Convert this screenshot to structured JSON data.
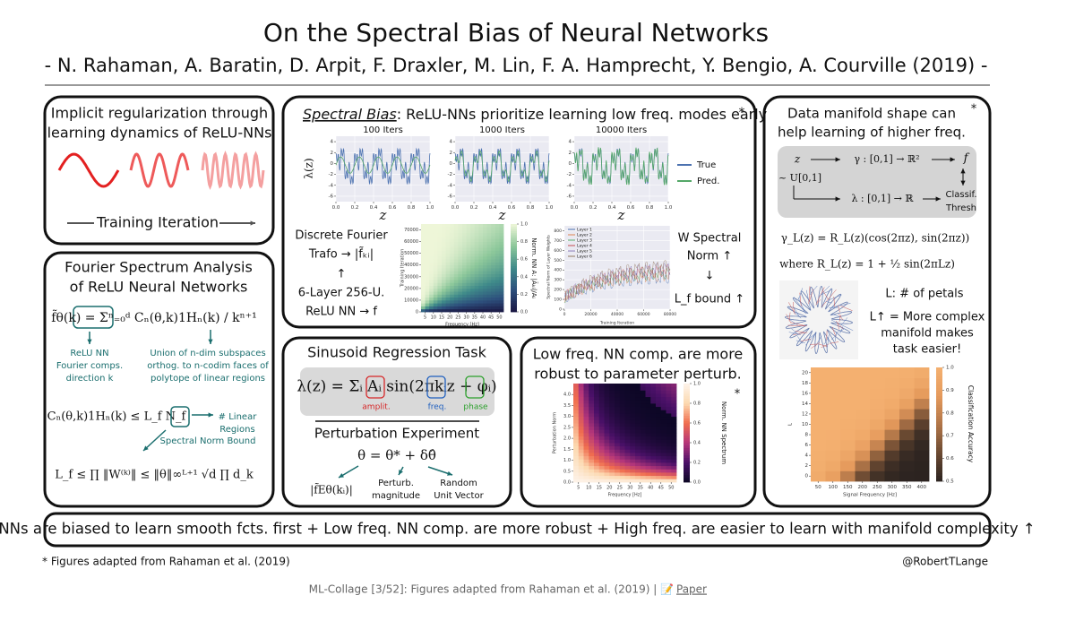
{
  "header": {
    "title": "On the Spectral Bias of Neural Networks",
    "authors": "- N. Rahaman, A. Baratin, D. Arpit, F. Draxler, M. Lin, F. A. Hamprecht, Y. Bengio, A. Courville (2019) -"
  },
  "panel_implicit": {
    "title": [
      "Implicit regularization through",
      "learning dynamics of ReLU-NNs"
    ],
    "axis_label": "Training Iteration"
  },
  "panel_fourier": {
    "title": [
      "Fourier Spectrum Analysis",
      "of ReLU Neural Networks"
    ],
    "formula_spectrum": "f̃θ(k) = Σⁿ₌₀ᵈ Cₙ(θ,k)1Hₙ(k) / kⁿ⁺¹",
    "note_left": [
      "ReLU NN",
      "Fourier comps.",
      "direction k"
    ],
    "note_right": [
      "Union of n-dim subspaces",
      "orthog. to n-codim faces of",
      "polytope of linear regions"
    ],
    "formula_bound": "Cₙ(θ,k)1Hₙ(k) ≤ L_f N_f",
    "note_regions": [
      "# Linear",
      "Regions"
    ],
    "note_norm": "Spectral Norm Bound",
    "formula_lipschitz": "L_f ≤ ∏ ‖W⁽ᵏ⁾‖ ≤ ‖θ‖∞ᴸ⁺¹ √d ∏ d_k"
  },
  "panel_spectral": {
    "title_emph": "Spectral Bias",
    "title_rest": ": ReLU-NNs prioritize learning low freq. modes early",
    "star": "*",
    "fits": {
      "titles": [
        "100 Iters",
        "1000 Iters",
        "10000 Iters"
      ],
      "ylabel": "λ(z)",
      "xlabel": "z",
      "xlim": [
        0,
        1
      ],
      "ylim": [
        -7,
        5
      ],
      "xticks": [
        {
          "value": 0,
          "label": "0.0"
        },
        {
          "value": 0.2,
          "label": "0.2"
        },
        {
          "value": 0.4,
          "label": "0.4"
        },
        {
          "value": 0.6,
          "label": "0.6"
        },
        {
          "value": 0.8,
          "label": "0.8"
        },
        {
          "value": 1,
          "label": "1.0"
        }
      ],
      "yticks": [
        4,
        2,
        0,
        -2,
        -4,
        -6
      ],
      "series": [
        {
          "name": "True",
          "color": "#4c72b0"
        },
        {
          "name": "Pred.",
          "color": "#55a868"
        }
      ]
    },
    "left_text": [
      "Discrete Fourier",
      "Trafo → |f̃ₖᵢ|",
      "↑",
      "6-Layer 256-U.",
      "ReLU NN → f"
    ],
    "heatmap": {
      "xlabel": "Frequency [Hz]",
      "ylabel": "Training Iteration",
      "xlim": [
        2.5,
        52.5
      ],
      "ylim": [
        0,
        75000
      ],
      "xticks": [
        5,
        10,
        15,
        20,
        25,
        30,
        35,
        40,
        45,
        50
      ],
      "yticks": [
        0,
        10000,
        20000,
        30000,
        40000,
        50000,
        60000,
        70000
      ],
      "cbar_lim": [
        0,
        1
      ],
      "cbar_ticks": [
        {
          "value": 0,
          "label": "0.0"
        },
        {
          "value": 0.2,
          "label": "0.2"
        },
        {
          "value": 0.4,
          "label": "0.4"
        },
        {
          "value": 0.6,
          "label": "0.6"
        },
        {
          "value": 0.8,
          "label": "0.8"
        },
        {
          "value": 1,
          "label": "1.0"
        }
      ],
      "cbar_label": "Norm. NN A: |Ãₖᵢ|/Aᵢ"
    },
    "norms": {
      "xlabel": "Training Iteration",
      "ylabel": "Spectral Norm of Layer Weights",
      "xlim": [
        0,
        80000
      ],
      "ylim": [
        0,
        850
      ],
      "xticks": [
        0,
        20000,
        40000,
        60000,
        80000
      ],
      "yticks": [
        0,
        100,
        200,
        300,
        400,
        500,
        600,
        700,
        800
      ],
      "series": [
        {
          "name": "Layer 1",
          "color": "#4c72b0"
        },
        {
          "name": "Layer 2",
          "color": "#dd8452"
        },
        {
          "name": "Layer 3",
          "color": "#55a868"
        },
        {
          "name": "Layer 4",
          "color": "#c44e52"
        },
        {
          "name": "Layer 5",
          "color": "#8172b3"
        },
        {
          "name": "Layer 6",
          "color": "#937860"
        }
      ]
    },
    "right_text": [
      "W Spectral",
      "Norm ↑",
      "↓",
      "L_f bound ↑"
    ]
  },
  "panel_sinusoid": {
    "title": "Sinusoid Regression Task",
    "formula": "λ(z) = Σᵢ Aᵢ sin(2πkᵢz + φᵢ)",
    "labels": [
      {
        "text": "amplit.",
        "color": "#d62728"
      },
      {
        "text": "freq.",
        "color": "#1f5fbf"
      },
      {
        "text": "phase",
        "color": "#2ca02c"
      }
    ],
    "subtitle": "Perturbation Experiment",
    "formula_perturb": "θ = θ* + δθ̂",
    "note_spectrum": "|f̃Eθ(kᵢ)|",
    "note_magnitude": [
      "Perturb.",
      "magnitude"
    ],
    "note_vector": [
      "Random",
      "Unit Vector"
    ]
  },
  "panel_robust": {
    "title": [
      "Low freq. NN comp. are more",
      "robust to parameter perturb."
    ],
    "star": "*",
    "heatmap": {
      "xlabel": "Frequency [Hz]",
      "ylabel": "Perturbation Norm",
      "xlim": [
        2.5,
        52.5
      ],
      "ylim": [
        0,
        4.5
      ],
      "xticks": [
        5,
        10,
        15,
        20,
        25,
        30,
        35,
        40,
        45,
        50
      ],
      "yticks": [
        {
          "value": 0,
          "label": "0.0"
        },
        {
          "value": 0.5,
          "label": "0.5"
        },
        {
          "value": 1,
          "label": "1.0"
        },
        {
          "value": 1.5,
          "label": "1.5"
        },
        {
          "value": 2,
          "label": "2.0"
        },
        {
          "value": 2.5,
          "label": "2.5"
        },
        {
          "value": 3,
          "label": "3.0"
        },
        {
          "value": 3.5,
          "label": "3.5"
        },
        {
          "value": 4,
          "label": "4.0"
        }
      ],
      "cbar_lim": [
        0,
        1
      ],
      "cbar_ticks": [
        {
          "value": 0,
          "label": "0.0"
        },
        {
          "value": 0.2,
          "label": "0.2"
        },
        {
          "value": 0.4,
          "label": "0.4"
        },
        {
          "value": 0.6,
          "label": "0.6"
        },
        {
          "value": 0.8,
          "label": "0.8"
        },
        {
          "value": 1,
          "label": "1.0"
        }
      ],
      "cbar_label": "Norm. NN Spectrum"
    }
  },
  "panel_manifold": {
    "title": [
      "Data manifold shape can",
      "help learning of higher freq."
    ],
    "star": "*",
    "diagram": {
      "z": "z",
      "gamma": "γ : [0,1] → ℝ²",
      "f": "f",
      "uniform": "~ U[0,1]",
      "lambda": "λ : [0,1] → ℝ",
      "thresh": [
        "Classif.",
        "Thresh"
      ]
    },
    "formula_gamma": "γ_L(z) = R_L(z)(cos(2πz), sin(2πz))",
    "formula_radius": "where R_L(z) = 1 + ½ sin(2πLz)",
    "note_petals": "L: # of petals",
    "note_complex": [
      "L↑ = More complex",
      "manifold makes",
      "task easier!"
    ],
    "heatmap": {
      "xlabel": "Signal Frequency [Hz]",
      "ylabel": "L",
      "xlim": [
        25,
        425
      ],
      "ylim": [
        -1,
        21
      ],
      "xticks": [
        50,
        100,
        150,
        200,
        250,
        300,
        350,
        400
      ],
      "yticks": [
        0,
        2,
        4,
        6,
        8,
        10,
        12,
        14,
        16,
        18,
        20
      ],
      "cbar_lim": [
        0.5,
        1
      ],
      "cbar_ticks": [
        {
          "value": 0.5,
          "label": "0.5"
        },
        {
          "value": 0.6,
          "label": "0.6"
        },
        {
          "value": 0.7,
          "label": "0.7"
        },
        {
          "value": 0.8,
          "label": "0.8"
        },
        {
          "value": 0.9,
          "label": "0.9"
        },
        {
          "value": 1,
          "label": "1.0"
        }
      ],
      "cbar_label": "Classification Accuracy"
    }
  },
  "summary": "NNs are biased to learn smooth fcts. first + Low freq. NN comp. are more robust + High freq. are easier to learn with manifold complexity ↑",
  "footer": {
    "footnote": "* Figures adapted from Rahaman et al. (2019)",
    "handle": "@RobertTLange"
  },
  "caption": {
    "text": "ML-Collage [3/52]: Figures adapted from Rahaman et al. (2019) | 📝",
    "link": "Paper"
  }
}
